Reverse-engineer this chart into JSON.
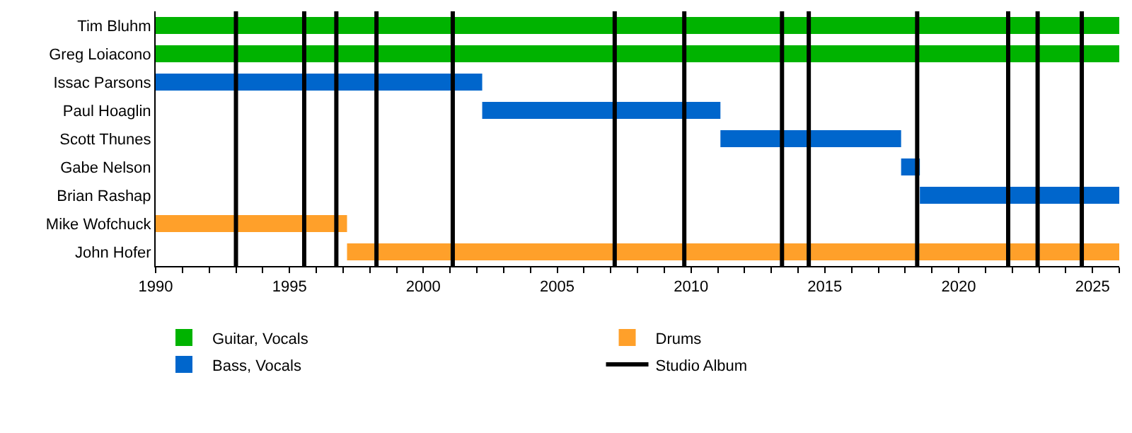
{
  "chart_data": {
    "type": "bar",
    "orientation": "horizontal",
    "categories": [
      "Tim Bluhm",
      "Greg Loiacono",
      "Issac Parsons",
      "Paul Hoaglin",
      "Scott Thunes",
      "Gabe Nelson",
      "Brian Rashap",
      "Mike Wofchuck",
      "John Hofer"
    ],
    "series": [
      {
        "name": "Guitar, Vocals",
        "color": "#00b300",
        "base": [
          1990,
          1990,
          null,
          null,
          null,
          null,
          null,
          null,
          null
        ],
        "values": [
          36,
          36,
          null,
          null,
          null,
          null,
          null,
          null,
          null
        ]
      },
      {
        "name": "Drums",
        "color": "#ffa02a",
        "base": [
          null,
          null,
          null,
          null,
          null,
          null,
          null,
          1990,
          1997.15
        ],
        "values": [
          null,
          null,
          null,
          null,
          null,
          null,
          null,
          7.15,
          28.85
        ]
      },
      {
        "name": "Bass, Vocals",
        "color": "#0066cc",
        "base": [
          null,
          null,
          1990,
          2002.2,
          2011.1,
          2017.85,
          2018.55,
          null,
          null
        ],
        "values": [
          null,
          null,
          12.2,
          8.9,
          6.75,
          0.7,
          7.45,
          null,
          null
        ]
      }
    ],
    "ref_lines": [
      {
        "axis": "x",
        "value": 1993.0,
        "label": "Studio Album",
        "color": "#000000"
      },
      {
        "axis": "x",
        "value": 1995.55,
        "color": "#000000"
      },
      {
        "axis": "x",
        "value": 1996.75,
        "color": "#000000"
      },
      {
        "axis": "x",
        "value": 1998.25,
        "color": "#000000"
      },
      {
        "axis": "x",
        "value": 2001.1,
        "color": "#000000"
      },
      {
        "axis": "x",
        "value": 2007.15,
        "color": "#000000"
      },
      {
        "axis": "x",
        "value": 2009.75,
        "color": "#000000"
      },
      {
        "axis": "x",
        "value": 2013.4,
        "color": "#000000"
      },
      {
        "axis": "x",
        "value": 2014.4,
        "color": "#000000"
      },
      {
        "axis": "x",
        "value": 2018.45,
        "color": "#000000"
      },
      {
        "axis": "x",
        "value": 2021.85,
        "color": "#000000"
      },
      {
        "axis": "x",
        "value": 2022.95,
        "color": "#000000"
      },
      {
        "axis": "x",
        "value": 2024.6,
        "color": "#000000"
      }
    ],
    "xlim": [
      1990,
      2026
    ],
    "xticks": [
      1990,
      {
        "value": 1991,
        "label": null
      },
      {
        "value": 1992,
        "label": null
      },
      {
        "value": 1993,
        "label": null
      },
      {
        "value": 1994,
        "label": null
      },
      1995,
      {
        "value": 1996,
        "label": null
      },
      {
        "value": 1997,
        "label": null
      },
      {
        "value": 1998,
        "label": null
      },
      {
        "value": 1999,
        "label": null
      },
      2000,
      {
        "value": 2001,
        "label": null
      },
      {
        "value": 2002,
        "label": null
      },
      {
        "value": 2003,
        "label": null
      },
      {
        "value": 2004,
        "label": null
      },
      2005,
      {
        "value": 2006,
        "label": null
      },
      {
        "value": 2007,
        "label": null
      },
      {
        "value": 2008,
        "label": null
      },
      {
        "value": 2009,
        "label": null
      },
      2010,
      {
        "value": 2011,
        "label": null
      },
      {
        "value": 2012,
        "label": null
      },
      {
        "value": 2013,
        "label": null
      },
      {
        "value": 2014,
        "label": null
      },
      2015,
      {
        "value": 2016,
        "label": null
      },
      {
        "value": 2017,
        "label": null
      },
      {
        "value": 2018,
        "label": null
      },
      {
        "value": 2019,
        "label": null
      },
      2020,
      {
        "value": 2021,
        "label": null
      },
      {
        "value": 2022,
        "label": null
      },
      {
        "value": 2023,
        "label": null
      },
      {
        "value": 2024,
        "label": null
      },
      2025,
      {
        "value": 2026,
        "label": null
      }
    ],
    "legend": "bottom left"
  }
}
